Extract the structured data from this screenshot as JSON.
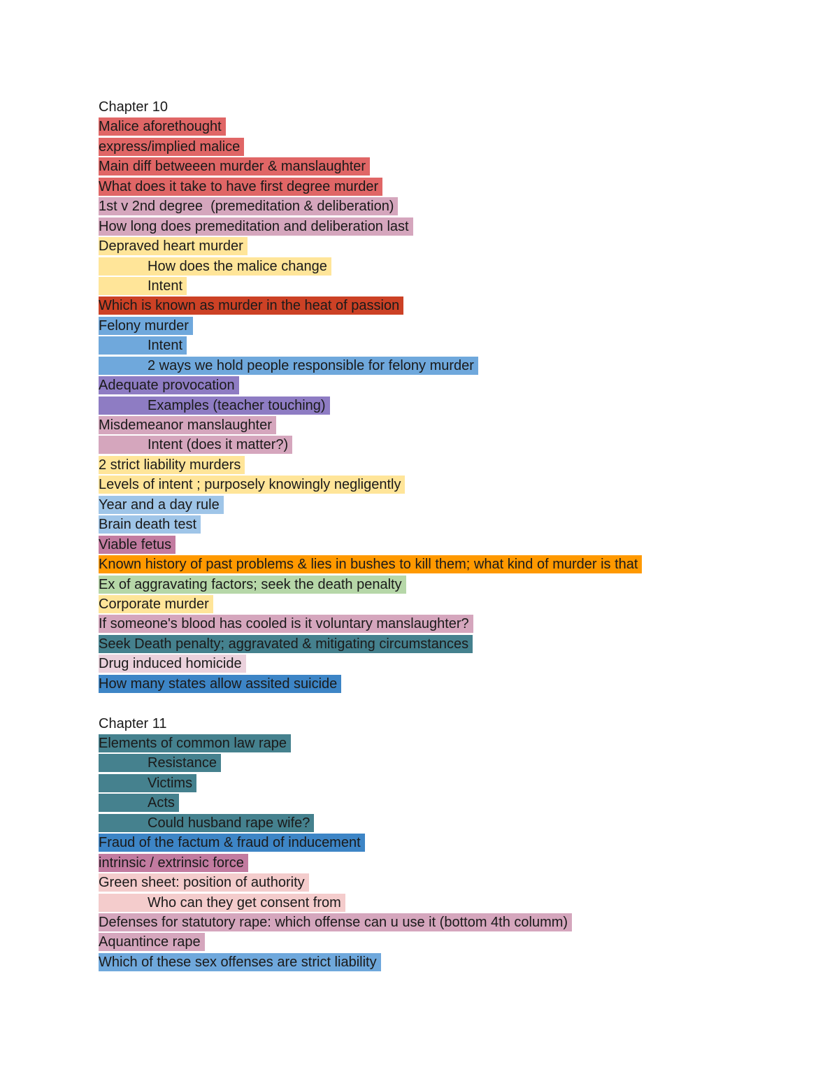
{
  "sections": [
    {
      "heading": "Chapter 10",
      "items": [
        {
          "text": "Malice aforethought",
          "indent": false,
          "color": "#e06666"
        },
        {
          "text": "express/implied malice",
          "indent": false,
          "color": "#e06666"
        },
        {
          "text": "Main diff betweeen murder & manslaughter",
          "indent": false,
          "color": "#e06666"
        },
        {
          "text": "What does it take to have first degree murder",
          "indent": false,
          "color": "#e06666"
        },
        {
          "text": "1st v 2nd degree  (premeditation & deliberation)",
          "indent": false,
          "color": "#d5a6bd"
        },
        {
          "text": "How long does premeditation and deliberation last",
          "indent": false,
          "color": "#d5a6bd"
        },
        {
          "text": "Depraved heart murder",
          "indent": false,
          "color": "#ffe599"
        },
        {
          "text": "How does the malice change",
          "indent": true,
          "color": "#ffe599"
        },
        {
          "text": "Intent",
          "indent": true,
          "color": "#ffe599"
        },
        {
          "text": "Which is known as murder in the heat of passion",
          "indent": false,
          "color": "#cc4125"
        },
        {
          "text": "Felony murder",
          "indent": false,
          "color": "#6fa8dc"
        },
        {
          "text": "Intent",
          "indent": true,
          "color": "#6fa8dc"
        },
        {
          "text": "2 ways we hold people responsible for felony murder",
          "indent": true,
          "color": "#6fa8dc"
        },
        {
          "text": "Adequate provocation",
          "indent": false,
          "color": "#8e7cc3"
        },
        {
          "text": "Examples (teacher touching)",
          "indent": true,
          "color": "#8e7cc3"
        },
        {
          "text": "Misdemeanor manslaughter",
          "indent": false,
          "color": "#d5a6bd"
        },
        {
          "text": "Intent (does it matter?)",
          "indent": true,
          "color": "#d5a6bd"
        },
        {
          "text": "2 strict liability murders",
          "indent": false,
          "color": "#ffe599"
        },
        {
          "text": "Levels of intent ; purposely knowingly negligently",
          "indent": false,
          "color": "#ffe599"
        },
        {
          "text": "Year and a day rule",
          "indent": false,
          "color": "#9fc5e8"
        },
        {
          "text": "Brain death test",
          "indent": false,
          "color": "#9fc5e8"
        },
        {
          "text": "Viable fetus",
          "indent": false,
          "color": "#c27ba0"
        },
        {
          "text": "Known history of past problems & lies in bushes to kill them; what kind of murder is that",
          "indent": false,
          "color": "#ff9900"
        },
        {
          "text": "Ex of aggravating factors; seek the death penalty",
          "indent": false,
          "color": "#b6d7a8"
        },
        {
          "text": "Corporate murder",
          "indent": false,
          "color": "#ffe599"
        },
        {
          "text": "If someone's blood has cooled is it voluntary manslaughter?",
          "indent": false,
          "color": "#d5a6bd"
        },
        {
          "text": "Seek Death penalty; aggravated & mitigating circumstances",
          "indent": false,
          "color": "#45818e"
        },
        {
          "text": "Drug induced homicide",
          "indent": false,
          "color": "#ead1dc"
        },
        {
          "text": "How many states allow assited suicide",
          "indent": false,
          "color": "#3d85c6"
        }
      ]
    },
    {
      "heading": "Chapter 11",
      "items": [
        {
          "text": "Elements of common law rape",
          "indent": false,
          "color": "#45818e"
        },
        {
          "text": "Resistance",
          "indent": true,
          "color": "#45818e"
        },
        {
          "text": "Victims",
          "indent": true,
          "color": "#45818e"
        },
        {
          "text": "Acts",
          "indent": true,
          "color": "#45818e"
        },
        {
          "text": "Could husband rape wife?",
          "indent": true,
          "color": "#45818e"
        },
        {
          "text": "Fraud of the factum & fraud of inducement",
          "indent": false,
          "color": "#3d85c6"
        },
        {
          "text": "intrinsic / extrinsic force",
          "indent": false,
          "color": "#c27ba0"
        },
        {
          "text": "Green sheet: position of authority",
          "indent": false,
          "color": "#f4cccc"
        },
        {
          "text": "Who can they get consent from",
          "indent": true,
          "color": "#f4cccc"
        },
        {
          "text": "Defenses for statutory rape: which offense can u use it (bottom 4th columm)",
          "indent": false,
          "color": "#d5a6bd"
        },
        {
          "text": "Aquantince rape",
          "indent": false,
          "color": "#d5a6bd"
        },
        {
          "text": "Which of these sex offenses are strict liability",
          "indent": false,
          "color": "#6fa8dc"
        }
      ]
    }
  ]
}
